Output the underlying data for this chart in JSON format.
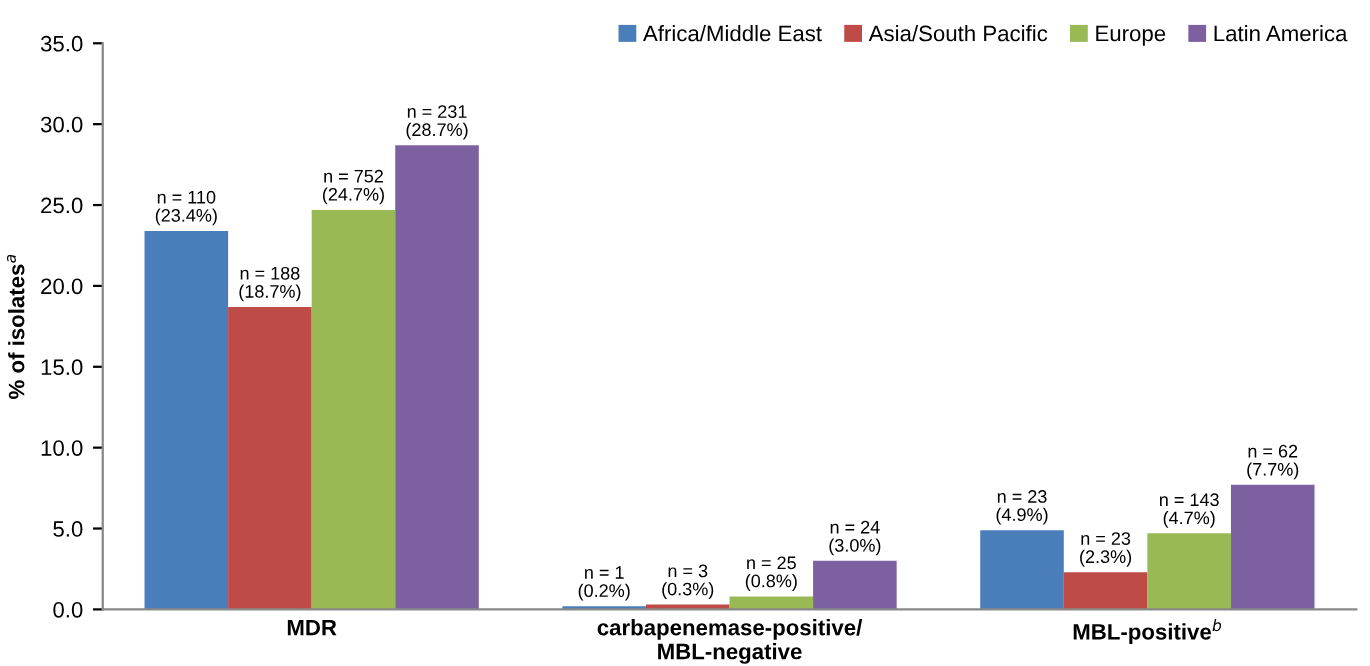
{
  "chart_data": {
    "type": "bar",
    "ylabel": "% of isolates$^{a}$",
    "categories": [
      "MDR",
      "carbapenemase-positive/\nMBL-negative",
      "MBL-positive$^{b}$"
    ],
    "series": [
      {
        "name": "Africa/Middle East",
        "color": "#4a7ebb",
        "values": [
          23.4,
          0.2,
          4.9
        ],
        "value_labels": [
          "n = 110\n(23.4%)",
          "n = 1\n(0.2%)",
          "n = 23\n(4.9%)"
        ]
      },
      {
        "name": "Asia/South Pacific",
        "color": "#be4b48",
        "values": [
          18.7,
          0.3,
          2.3
        ],
        "value_labels": [
          "n = 188\n(18.7%)",
          "n = 3\n(0.3%)",
          "n = 23\n(2.3%)"
        ]
      },
      {
        "name": "Europe",
        "color": "#98b954",
        "values": [
          24.7,
          0.8,
          4.7
        ],
        "value_labels": [
          "n = 752\n(24.7%)",
          "n = 25\n(0.8%)",
          "n = 143\n(4.7%)"
        ]
      },
      {
        "name": "Latin America",
        "color": "#7d60a0",
        "values": [
          28.7,
          3.0,
          7.7
        ],
        "value_labels": [
          "n = 231\n(28.7%)",
          "n = 24\n(3.0%)",
          "n = 62\n(7.7%)"
        ]
      }
    ],
    "ylim": [
      0,
      35
    ],
    "yticks": [
      {
        "value": 0,
        "label": "0.0"
      },
      {
        "value": 5,
        "label": "5.0"
      },
      {
        "value": 10,
        "label": "10.0"
      },
      {
        "value": 15,
        "label": "15.0"
      },
      {
        "value": 20,
        "label": "20.0"
      },
      {
        "value": 25,
        "label": "25.0"
      },
      {
        "value": 30,
        "label": "30.0"
      },
      {
        "value": 35,
        "label": "35.0"
      }
    ],
    "grid": false,
    "legend": "top right"
  }
}
